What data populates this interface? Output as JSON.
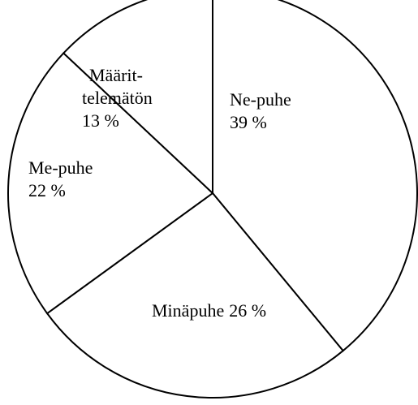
{
  "chart_data": {
    "type": "pie",
    "categories": [
      [
        "Ne-puhe"
      ],
      [
        "Minäpuhe"
      ],
      [
        "Me-puhe"
      ],
      [
        "Määrit-",
        "telemätön"
      ]
    ],
    "values": [
      39,
      26,
      22,
      13
    ],
    "value_labels": [
      "39 %",
      "26 %",
      "22 %",
      "13 %"
    ],
    "color": "#ffffff",
    "stroke": "#000000"
  }
}
